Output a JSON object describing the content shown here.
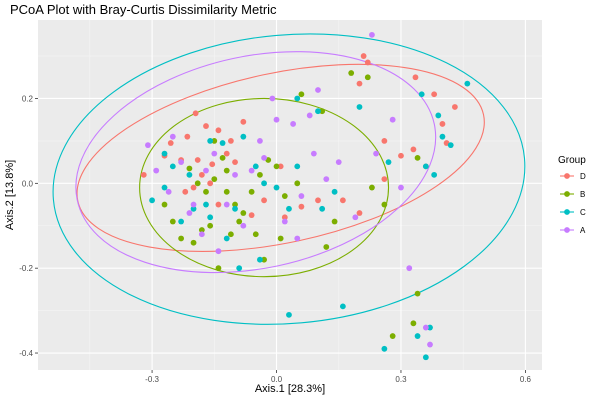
{
  "chart_data": {
    "type": "scatter",
    "title": "PCoA Plot with Bray-Curtis Dissimilarity Metric",
    "xlabel": "Axis.1   [28.3%]",
    "ylabel": "Axis.2   [13.8%]",
    "xlim": [
      -0.575,
      0.64
    ],
    "ylim": [
      -0.44,
      0.385
    ],
    "x_ticks": [
      -0.3,
      0.0,
      0.3,
      0.6
    ],
    "x_tick_labels": [
      "-0.3",
      "0.0",
      "0.3",
      "0.6"
    ],
    "y_ticks": [
      -0.4,
      -0.2,
      0.0,
      0.2
    ],
    "y_tick_labels": [
      "-0.4",
      "-0.2",
      "0.0",
      "0.2"
    ],
    "grid": true,
    "panel_background": "#ebebeb",
    "legend": {
      "title": "Group",
      "position": "right"
    },
    "series": [
      {
        "name": "D",
        "color": "#F8766D",
        "points": [
          [
            -0.195,
            0.165
          ],
          [
            -0.215,
            0.11
          ],
          [
            -0.255,
            0.095
          ],
          [
            -0.17,
            0.135
          ],
          [
            -0.14,
            0.125
          ],
          [
            -0.27,
            0.065
          ],
          [
            -0.23,
            0.055
          ],
          [
            -0.11,
            0.1
          ],
          [
            -0.19,
            0.055
          ],
          [
            -0.155,
            0.045
          ],
          [
            -0.18,
            0.02
          ],
          [
            -0.2,
            -0.01
          ],
          [
            -0.16,
            0.0
          ],
          [
            -0.22,
            -0.02
          ],
          [
            -0.14,
            -0.05
          ],
          [
            -0.12,
            0.07
          ],
          [
            -0.08,
            0.145
          ],
          [
            -0.06,
            -0.075
          ],
          [
            -0.03,
            -0.04
          ],
          [
            0.02,
            -0.08
          ],
          [
            0.06,
            -0.055
          ],
          [
            0.1,
            -0.04
          ],
          [
            0.2,
            0.235
          ],
          [
            0.22,
            0.285
          ],
          [
            0.21,
            0.3
          ],
          [
            0.26,
            0.1
          ],
          [
            0.3,
            0.065
          ],
          [
            0.335,
            0.25
          ],
          [
            0.38,
            0.21
          ],
          [
            0.41,
            0.095
          ],
          [
            0.43,
            0.18
          ],
          [
            0.4,
            0.14
          ],
          [
            0.36,
            0.04
          ],
          [
            0.33,
            0.08
          ],
          [
            0.16,
            -0.04
          ],
          [
            0.26,
            0.01
          ],
          [
            0.2,
            -0.07
          ],
          [
            -0.32,
            0.02
          ],
          [
            -0.1,
            0.05
          ],
          [
            0.01,
            0.04
          ]
        ]
      },
      {
        "name": "B",
        "color": "#7CAE00",
        "points": [
          [
            -0.21,
            0.035
          ],
          [
            -0.19,
            0.0
          ],
          [
            -0.17,
            -0.02
          ],
          [
            -0.15,
            0.01
          ],
          [
            -0.13,
            0.06
          ],
          [
            -0.12,
            -0.02
          ],
          [
            -0.1,
            -0.05
          ],
          [
            -0.08,
            -0.07
          ],
          [
            -0.06,
            -0.02
          ],
          [
            -0.04,
            0.02
          ],
          [
            -0.02,
            0.055
          ],
          [
            0.0,
            0.04
          ],
          [
            0.02,
            -0.03
          ],
          [
            0.05,
            0.0
          ],
          [
            -0.25,
            -0.09
          ],
          [
            -0.23,
            -0.13
          ],
          [
            -0.2,
            -0.14
          ],
          [
            -0.16,
            -0.1
          ],
          [
            -0.14,
            -0.2
          ],
          [
            -0.18,
            -0.11
          ],
          [
            -0.11,
            -0.12
          ],
          [
            -0.09,
            -0.09
          ],
          [
            -0.03,
            -0.18
          ],
          [
            0.01,
            -0.13
          ],
          [
            -0.27,
            -0.05
          ],
          [
            0.22,
            0.25
          ],
          [
            0.18,
            0.26
          ],
          [
            0.11,
            0.17
          ],
          [
            0.06,
            0.21
          ],
          [
            0.14,
            -0.09
          ],
          [
            0.12,
            -0.15
          ],
          [
            0.23,
            -0.01
          ],
          [
            0.34,
            0.06
          ],
          [
            0.26,
            -0.05
          ],
          [
            0.28,
            -0.36
          ],
          [
            0.33,
            -0.33
          ],
          [
            0.34,
            -0.26
          ],
          [
            -0.15,
            0.1
          ],
          [
            -0.05,
            -0.12
          ],
          [
            -0.12,
            0.03
          ]
        ]
      },
      {
        "name": "C",
        "color": "#00BFC4",
        "points": [
          [
            -0.16,
            0.1
          ],
          [
            -0.13,
            0.095
          ],
          [
            -0.27,
            0.07
          ],
          [
            -0.25,
            0.04
          ],
          [
            -0.27,
            -0.01
          ],
          [
            -0.21,
            0.02
          ],
          [
            -0.3,
            -0.04
          ],
          [
            -0.23,
            -0.09
          ],
          [
            -0.2,
            -0.06
          ],
          [
            -0.16,
            -0.08
          ],
          [
            -0.12,
            -0.13
          ],
          [
            -0.1,
            -0.06
          ],
          [
            -0.05,
            0.04
          ],
          [
            -0.03,
            0.0
          ],
          [
            0.0,
            -0.01
          ],
          [
            0.03,
            -0.06
          ],
          [
            0.05,
            0.04
          ],
          [
            -0.04,
            -0.18
          ],
          [
            -0.08,
            0.11
          ],
          [
            0.05,
            0.2
          ],
          [
            -0.09,
            -0.2
          ],
          [
            0.1,
            0.17
          ],
          [
            0.14,
            -0.02
          ],
          [
            0.11,
            -0.06
          ],
          [
            0.2,
            0.18
          ],
          [
            0.27,
            0.05
          ],
          [
            0.35,
            0.21
          ],
          [
            0.39,
            0.16
          ],
          [
            0.4,
            0.11
          ],
          [
            0.42,
            0.09
          ],
          [
            0.36,
            0.04
          ],
          [
            0.38,
            0.02
          ],
          [
            0.46,
            0.235
          ],
          [
            0.16,
            -0.29
          ],
          [
            0.03,
            -0.31
          ],
          [
            0.26,
            -0.39
          ],
          [
            0.36,
            -0.41
          ],
          [
            0.34,
            -0.36
          ],
          [
            0.37,
            -0.34
          ],
          [
            -0.17,
            -0.05
          ]
        ]
      },
      {
        "name": "A",
        "color": "#C77CFF",
        "points": [
          [
            -0.15,
            0.07
          ],
          [
            -0.17,
            0.03
          ],
          [
            -0.23,
            0.05
          ],
          [
            -0.29,
            0.03
          ],
          [
            -0.31,
            0.09
          ],
          [
            -0.2,
            -0.05
          ],
          [
            -0.18,
            -0.12
          ],
          [
            -0.14,
            -0.16
          ],
          [
            -0.12,
            -0.05
          ],
          [
            -0.1,
            0.02
          ],
          [
            -0.06,
            0.03
          ],
          [
            -0.03,
            0.06
          ],
          [
            0.0,
            0.15
          ],
          [
            0.04,
            0.14
          ],
          [
            0.08,
            0.16
          ],
          [
            -0.01,
            0.2
          ],
          [
            0.02,
            -0.09
          ],
          [
            0.05,
            -0.13
          ],
          [
            0.09,
            0.07
          ],
          [
            0.12,
            0.01
          ],
          [
            0.19,
            -0.08
          ],
          [
            0.24,
            0.07
          ],
          [
            0.23,
            0.35
          ],
          [
            0.3,
            -0.01
          ],
          [
            0.32,
            -0.2
          ],
          [
            0.36,
            -0.34
          ],
          [
            0.37,
            -0.38
          ],
          [
            0.28,
            0.15
          ],
          [
            -0.26,
            -0.02
          ],
          [
            -0.21,
            -0.07
          ],
          [
            -0.25,
            0.11
          ],
          [
            -0.08,
            -0.1
          ],
          [
            0.1,
            0.22
          ],
          [
            0.15,
            0.05
          ],
          [
            -0.04,
            0.1
          ],
          [
            0.06,
            -0.03
          ]
        ]
      }
    ],
    "ellipses": [
      {
        "group": "D",
        "cx": 0.01,
        "cy": 0.06,
        "rx": 0.5,
        "ry": 0.2,
        "rotation_deg": -12
      },
      {
        "group": "B",
        "cx": -0.03,
        "cy": -0.01,
        "rx": 0.3,
        "ry": 0.21,
        "rotation_deg": 0
      },
      {
        "group": "C",
        "cx": 0.03,
        "cy": 0.01,
        "rx": 0.57,
        "ry": 0.34,
        "rotation_deg": -5
      },
      {
        "group": "A",
        "cx": -0.05,
        "cy": 0.05,
        "rx": 0.44,
        "ry": 0.25,
        "rotation_deg": -12
      }
    ]
  }
}
